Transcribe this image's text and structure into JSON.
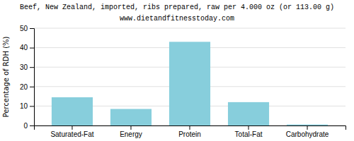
{
  "chart_data": {
    "type": "bar",
    "title": "Beef, New Zealand, imported, ribs prepared, raw per 4.000 oz (or 113.00 g)",
    "subtitle": "www.dietandfitnesstoday.com",
    "ylabel": "Percentage of RDH (%)",
    "categories": [
      "Saturated-Fat",
      "Energy",
      "Protein",
      "Total-Fat",
      "Carbohydrate"
    ],
    "values": [
      14.5,
      8.5,
      43.0,
      12.0,
      0.5
    ],
    "color": "#87CEDC",
    "ylim": [
      0,
      50
    ],
    "yticks": [
      0,
      10,
      20,
      30,
      40,
      50
    ],
    "grid": true
  }
}
